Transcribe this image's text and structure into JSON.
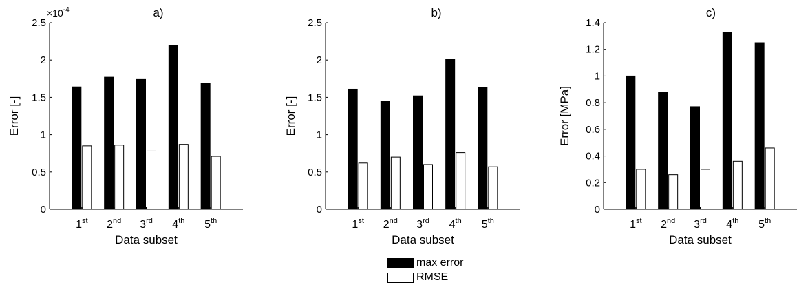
{
  "colors": {
    "max_error": "#000000",
    "rmse": "#ffffff",
    "axis": "#000000"
  },
  "legend": {
    "entries": [
      {
        "label": "max error",
        "color": "#000000"
      },
      {
        "label": "RMSE",
        "color": "#ffffff"
      }
    ]
  },
  "chart_data": [
    {
      "type": "bar",
      "title": "a)",
      "xlabel": "Data subset",
      "ylabel": "Error [-]",
      "exponent_label": "×10",
      "exponent_power": "-4",
      "categories": [
        {
          "base": "1",
          "sup": "st"
        },
        {
          "base": "2",
          "sup": "nd"
        },
        {
          "base": "3",
          "sup": "rd"
        },
        {
          "base": "4",
          "sup": "th"
        },
        {
          "base": "5",
          "sup": "th"
        }
      ],
      "ylim": [
        0,
        2.5
      ],
      "yticks": [
        "0",
        "0.5",
        "1",
        "1.5",
        "2",
        "2.5"
      ],
      "series": [
        {
          "name": "max error",
          "values": [
            1.64,
            1.77,
            1.74,
            2.2,
            1.69
          ]
        },
        {
          "name": "RMSE",
          "values": [
            0.85,
            0.86,
            0.78,
            0.87,
            0.71
          ]
        }
      ]
    },
    {
      "type": "bar",
      "title": "b)",
      "xlabel": "Data subset",
      "ylabel": "Error [-]",
      "categories": [
        {
          "base": "1",
          "sup": "st"
        },
        {
          "base": "2",
          "sup": "nd"
        },
        {
          "base": "3",
          "sup": "rd"
        },
        {
          "base": "4",
          "sup": "th"
        },
        {
          "base": "5",
          "sup": "th"
        }
      ],
      "ylim": [
        0,
        2.5
      ],
      "yticks": [
        "0",
        "0.5",
        "1",
        "1.5",
        "2",
        "2.5"
      ],
      "series": [
        {
          "name": "max error",
          "values": [
            1.61,
            1.45,
            1.52,
            2.01,
            1.63
          ]
        },
        {
          "name": "RMSE",
          "values": [
            0.62,
            0.7,
            0.6,
            0.76,
            0.57
          ]
        }
      ]
    },
    {
      "type": "bar",
      "title": "c)",
      "xlabel": "Data subset",
      "ylabel": "Error [MPa]",
      "categories": [
        {
          "base": "1",
          "sup": "st"
        },
        {
          "base": "2",
          "sup": "nd"
        },
        {
          "base": "3",
          "sup": "rd"
        },
        {
          "base": "4",
          "sup": "th"
        },
        {
          "base": "5",
          "sup": "th"
        }
      ],
      "ylim": [
        0,
        1.4
      ],
      "yticks": [
        "0",
        "0.2",
        "0.4",
        "0.6",
        "0.8",
        "1",
        "1.2",
        "1.4"
      ],
      "series": [
        {
          "name": "max error",
          "values": [
            1.0,
            0.88,
            0.77,
            1.33,
            1.25
          ]
        },
        {
          "name": "RMSE",
          "values": [
            0.3,
            0.26,
            0.3,
            0.36,
            0.46
          ]
        }
      ]
    }
  ]
}
